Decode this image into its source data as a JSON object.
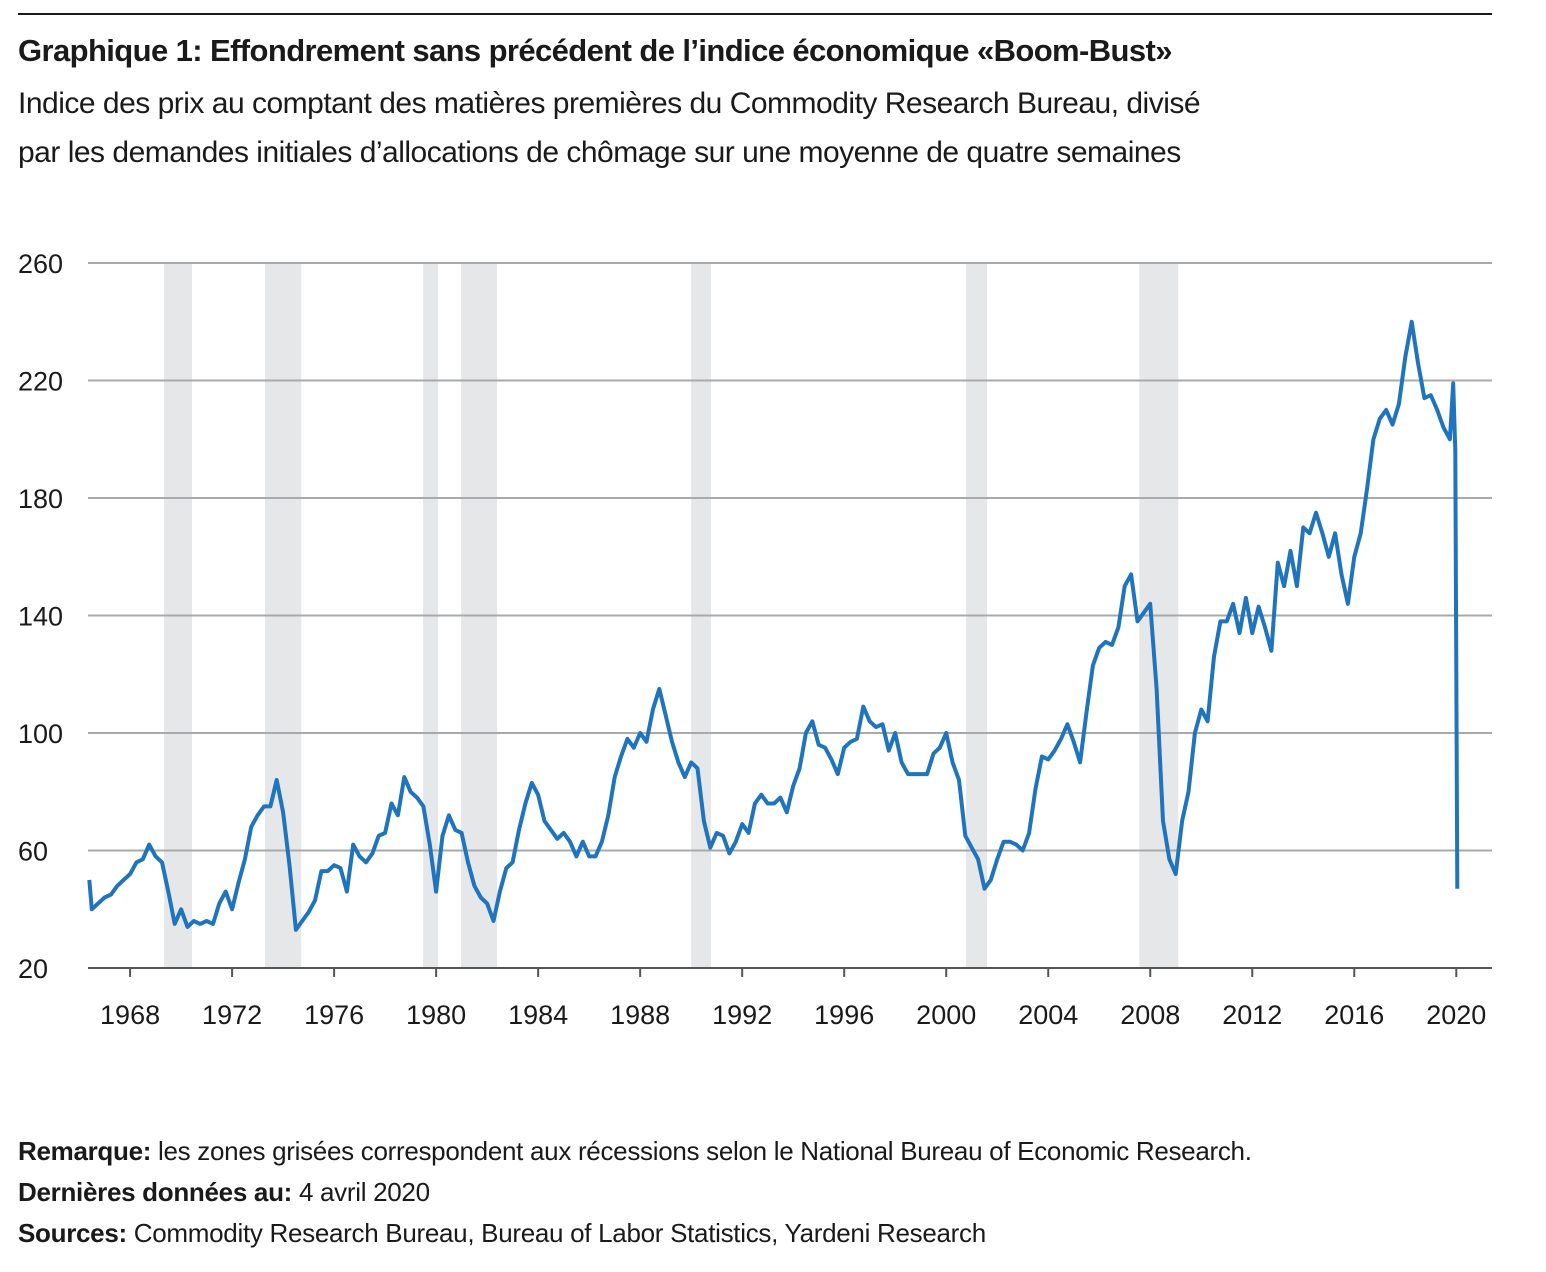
{
  "chart_data": {
    "type": "line",
    "title": "Graphique 1: Effondrement sans précédent de l’indice économique «Boom-Bust»",
    "subtitle": [
      "Indice des prix au comptant des matières premières du Commodity Research Bureau, divisé",
      "par les demandes initiales d’allocations de chômage sur une moyenne de quatre semaines"
    ],
    "x": [
      1966.4,
      1966.5,
      1966.75,
      1967,
      1967.25,
      1967.5,
      1967.75,
      1968,
      1968.25,
      1968.5,
      1968.75,
      1969,
      1969.25,
      1969.5,
      1969.75,
      1970,
      1970.25,
      1970.5,
      1970.75,
      1971,
      1971.25,
      1971.5,
      1971.75,
      1972,
      1972.25,
      1972.5,
      1972.75,
      1973,
      1973.25,
      1973.5,
      1973.75,
      1974,
      1974.25,
      1974.5,
      1974.75,
      1975,
      1975.25,
      1975.5,
      1975.75,
      1976,
      1976.25,
      1976.5,
      1976.75,
      1977,
      1977.25,
      1977.5,
      1977.75,
      1978,
      1978.25,
      1978.5,
      1978.75,
      1979,
      1979.25,
      1979.5,
      1979.75,
      1980,
      1980.25,
      1980.5,
      1980.75,
      1981,
      1981.25,
      1981.5,
      1981.75,
      1982,
      1982.25,
      1982.5,
      1982.75,
      1983,
      1983.25,
      1983.5,
      1983.75,
      1984,
      1984.25,
      1984.5,
      1984.75,
      1985,
      1985.25,
      1985.5,
      1985.75,
      1986,
      1986.25,
      1986.5,
      1986.75,
      1987,
      1987.25,
      1987.5,
      1987.75,
      1988,
      1988.25,
      1988.5,
      1988.75,
      1989,
      1989.25,
      1989.5,
      1989.75,
      1990,
      1990.25,
      1990.5,
      1990.75,
      1991,
      1991.25,
      1991.5,
      1991.75,
      1992,
      1992.25,
      1992.5,
      1992.75,
      1993,
      1993.25,
      1993.5,
      1993.75,
      1994,
      1994.25,
      1994.5,
      1994.75,
      1995,
      1995.25,
      1995.5,
      1995.75,
      1996,
      1996.25,
      1996.5,
      1996.75,
      1997,
      1997.25,
      1997.5,
      1997.75,
      1998,
      1998.25,
      1998.5,
      1998.75,
      1999,
      1999.25,
      1999.5,
      1999.75,
      2000,
      2000.25,
      2000.5,
      2000.75,
      2001,
      2001.25,
      2001.5,
      2001.75,
      2002,
      2002.25,
      2002.5,
      2002.75,
      2003,
      2003.25,
      2003.5,
      2003.75,
      2004,
      2004.25,
      2004.5,
      2004.75,
      2005,
      2005.25,
      2005.5,
      2005.75,
      2006,
      2006.25,
      2006.5,
      2006.75,
      2007,
      2007.25,
      2007.5,
      2007.75,
      2008,
      2008.25,
      2008.5,
      2008.75,
      2009,
      2009.25,
      2009.5,
      2009.75,
      2010,
      2010.25,
      2010.5,
      2010.75,
      2011,
      2011.25,
      2011.5,
      2011.75,
      2012,
      2012.25,
      2012.5,
      2012.75,
      2013,
      2013.25,
      2013.5,
      2013.75,
      2014,
      2014.25,
      2014.5,
      2014.75,
      2015,
      2015.25,
      2015.5,
      2015.75,
      2016,
      2016.25,
      2016.5,
      2016.75,
      2017,
      2017.25,
      2017.5,
      2017.75,
      2018,
      2018.25,
      2018.5,
      2018.75,
      2019,
      2019.25,
      2019.5,
      2019.75,
      2019.88,
      2019.96,
      2020.04
    ],
    "values": [
      50,
      40,
      42,
      44,
      45,
      48,
      50,
      52,
      56,
      57,
      62,
      58,
      56,
      46,
      35,
      40,
      34,
      36,
      35,
      36,
      35,
      42,
      46,
      40,
      49,
      57,
      68,
      72,
      75,
      75,
      84,
      73,
      55,
      33,
      36,
      39,
      43,
      53,
      53,
      55,
      54,
      46,
      62,
      58,
      56,
      59,
      65,
      66,
      76,
      72,
      85,
      80,
      78,
      75,
      62,
      46,
      65,
      72,
      67,
      66,
      56,
      48,
      44,
      42,
      36,
      46,
      54,
      56,
      67,
      76,
      83,
      79,
      70,
      67,
      64,
      66,
      63,
      58,
      63,
      58,
      58,
      63,
      72,
      85,
      92,
      98,
      95,
      100,
      97,
      108,
      115,
      106,
      97,
      90,
      85,
      90,
      88,
      70,
      61,
      66,
      65,
      59,
      63,
      69,
      66,
      76,
      79,
      76,
      76,
      78,
      73,
      82,
      88,
      100,
      104,
      96,
      95,
      91,
      86,
      95,
      97,
      98,
      109,
      104,
      102,
      103,
      94,
      100,
      90,
      86,
      86,
      86,
      86,
      93,
      95,
      100,
      90,
      84,
      65,
      61,
      57,
      47,
      50,
      57,
      63,
      63,
      62,
      60,
      66,
      81,
      92,
      91,
      94,
      98,
      103,
      97,
      90,
      107,
      123,
      129,
      131,
      130,
      136,
      150,
      154,
      138,
      141,
      144,
      115,
      70,
      57,
      52,
      70,
      80,
      100,
      108,
      104,
      126,
      138,
      138,
      144,
      134,
      146,
      134,
      143,
      136,
      128,
      158,
      150,
      162,
      150,
      170,
      168,
      175,
      168,
      160,
      168,
      154,
      144,
      160,
      168,
      183,
      200,
      207,
      210,
      205,
      212,
      228,
      240,
      226,
      214,
      215,
      210,
      204,
      200,
      219,
      196,
      47
    ],
    "color": "#1f74bd",
    "recessions": [
      [
        1969.33,
        1970.43
      ],
      [
        1973.29,
        1974.71
      ],
      [
        1979.49,
        1980.08
      ],
      [
        1980.98,
        1982.39
      ],
      [
        1990.0,
        1990.78
      ],
      [
        2000.78,
        2001.6
      ],
      [
        2007.57,
        2009.1
      ]
    ],
    "recession_color": "#e6e7e8",
    "xlim": [
      1966.35,
      2021.4
    ],
    "xticks": [
      1968,
      1972,
      1976,
      1980,
      1984,
      1988,
      1992,
      1996,
      2000,
      2004,
      2008,
      2012,
      2016,
      2020
    ],
    "ylim": [
      20,
      260
    ],
    "yticks": [
      20,
      60,
      100,
      140,
      180,
      220,
      260
    ],
    "grid": true,
    "notes": [
      {
        "label": "Remarque:",
        "text": " les zones grisées correspondent aux récessions selon le National Bureau of Economic Research."
      },
      {
        "label": "Dernières données au:",
        "text": " 4 avril 2020"
      },
      {
        "label": "Sources:",
        "text": " Commodity Research Bureau, Bureau of Labor Statistics, Yardeni Research"
      }
    ]
  }
}
